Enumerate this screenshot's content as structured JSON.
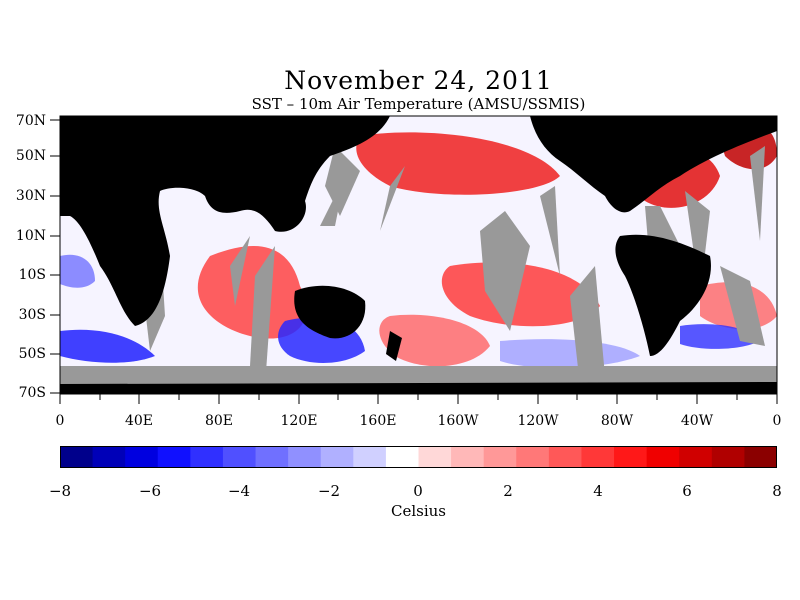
{
  "title": "November 24, 2011",
  "subtitle": "SST – 10m Air Temperature (AMSU/SSMIS)",
  "lat_labels": [
    "70N",
    "50N",
    "30N",
    "10N",
    "10S",
    "30S",
    "50S",
    "70S"
  ],
  "lon_labels": [
    "0",
    "40E",
    "80E",
    "120E",
    "160E",
    "160W",
    "120W",
    "80W",
    "40W",
    "0"
  ],
  "colorbar": {
    "ticks": [
      "−8",
      "−6",
      "−4",
      "−2",
      "0",
      "2",
      "4",
      "6",
      "8"
    ],
    "label": "Celsius",
    "min": -8,
    "max": 8,
    "colors": [
      "#00008b",
      "#0000b8",
      "#0000e0",
      "#1010ff",
      "#3030ff",
      "#5050ff",
      "#7070ff",
      "#9090ff",
      "#b0b0ff",
      "#d0d0ff",
      "#ffffff",
      "#ffd8d8",
      "#ffb8b8",
      "#ff9898",
      "#ff7878",
      "#ff5858",
      "#ff3838",
      "#ff1818",
      "#f00000",
      "#d00000",
      "#b00000",
      "#8b0000"
    ]
  },
  "colors": {
    "land": "#000000",
    "missing": "#999999",
    "ocean_background": "#f4f4ff"
  }
}
